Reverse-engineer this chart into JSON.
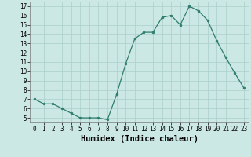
{
  "x": [
    0,
    1,
    2,
    3,
    4,
    5,
    6,
    7,
    8,
    9,
    10,
    11,
    12,
    13,
    14,
    15,
    16,
    17,
    18,
    19,
    20,
    21,
    22,
    23
  ],
  "y": [
    7,
    6.5,
    6.5,
    6,
    5.5,
    5,
    5,
    5,
    4.8,
    7.5,
    10.8,
    13.5,
    14.2,
    14.2,
    15.8,
    16,
    15,
    17,
    16.5,
    15.5,
    13.3,
    11.5,
    9.8,
    8.2
  ],
  "line_color": "#2e7d6e",
  "marker": "o",
  "marker_size": 2,
  "bg_color": "#cce8e4",
  "grid_color": "#aacfcb",
  "xlabel": "Humidex (Indice chaleur)",
  "ylim": [
    4.5,
    17.5
  ],
  "xlim": [
    -0.5,
    23.5
  ],
  "yticks": [
    5,
    6,
    7,
    8,
    9,
    10,
    11,
    12,
    13,
    14,
    15,
    16,
    17
  ],
  "xticks": [
    0,
    1,
    2,
    3,
    4,
    5,
    6,
    7,
    8,
    9,
    10,
    11,
    12,
    13,
    14,
    15,
    16,
    17,
    18,
    19,
    20,
    21,
    22,
    23
  ],
  "tick_label_fontsize": 5.5,
  "xlabel_fontsize": 7.5,
  "title": ""
}
